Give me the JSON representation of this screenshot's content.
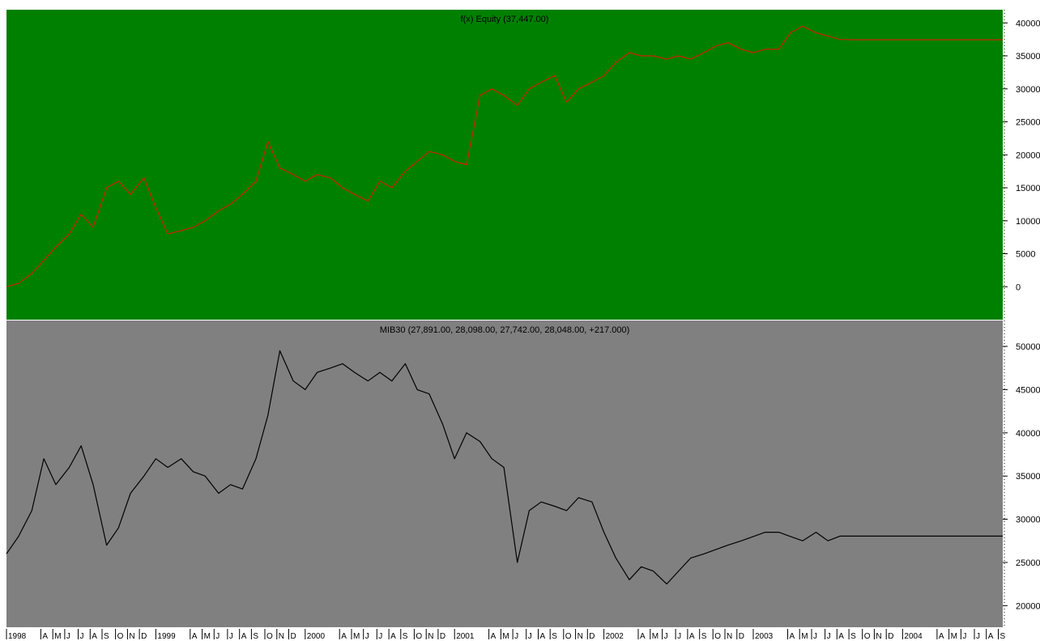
{
  "colors": {
    "page_background": "#ffffff",
    "equity_panel_background": "#008000",
    "equity_line": "#cc2200",
    "price_panel_background": "#808080",
    "price_line": "#000000",
    "axis_text": "#000000"
  },
  "chart_data": [
    {
      "type": "line",
      "panel": "top",
      "title": "f(x) Equity (37,447.00)",
      "xlabel": "",
      "ylabel": "",
      "grid": false,
      "y_axis_side": "right",
      "ylim": [
        -5000,
        42000
      ],
      "y_ticks": [
        0,
        5000,
        10000,
        15000,
        20000,
        25000,
        30000,
        35000,
        40000
      ],
      "y_tick_labels": [
        "0",
        "5000",
        "10000",
        "15000",
        "20000",
        "25000",
        "30000",
        "35000",
        "40000"
      ],
      "series": [
        {
          "x": [
            1998.0,
            1998.08,
            1998.17,
            1998.25,
            1998.33,
            1998.42,
            1998.5,
            1998.58,
            1998.67,
            1998.75,
            1998.83,
            1998.92,
            1999.0,
            1999.08,
            1999.17,
            1999.25,
            1999.33,
            1999.42,
            1999.5,
            1999.58,
            1999.67,
            1999.75,
            1999.83,
            1999.92,
            2000.0,
            2000.08,
            2000.17,
            2000.25,
            2000.33,
            2000.42,
            2000.5,
            2000.58,
            2000.67,
            2000.75,
            2000.83,
            2000.92,
            2001.0,
            2001.08,
            2001.17,
            2001.25,
            2001.33,
            2001.42,
            2001.5,
            2001.58,
            2001.67,
            2001.75,
            2001.83,
            2001.92,
            2002.0,
            2002.08,
            2002.17,
            2002.25,
            2002.33,
            2002.42,
            2002.5,
            2002.58,
            2002.67,
            2002.75,
            2002.83,
            2002.92,
            2003.0,
            2003.08,
            2003.17,
            2003.25,
            2003.33,
            2003.42,
            2003.5,
            2003.58,
            2003.67,
            2003.75,
            2003.83,
            2003.92,
            2004.0,
            2004.08,
            2004.17,
            2004.25,
            2004.33,
            2004.42,
            2004.5,
            2004.58,
            2004.67
          ],
          "values": [
            0,
            500,
            2000,
            4000,
            6000,
            8000,
            11000,
            9000,
            15000,
            16000,
            14000,
            16500,
            12000,
            8000,
            8500,
            9000,
            10000,
            11500,
            12500,
            14000,
            16000,
            22000,
            18000,
            17000,
            16000,
            17000,
            16500,
            15000,
            14000,
            13000,
            16000,
            15000,
            17500,
            19000,
            20500,
            20000,
            19000,
            18500,
            29000,
            30000,
            29000,
            27500,
            30000,
            31000,
            32000,
            28000,
            30000,
            31000,
            32000,
            34000,
            35500,
            35000,
            35000,
            34500,
            35000,
            34500,
            35500,
            36500,
            37000,
            36000,
            35500,
            36000,
            36000,
            38500,
            39500,
            38500,
            38000,
            37500,
            37447,
            37447,
            37447,
            37447,
            37447,
            37447,
            37447,
            37447,
            37447,
            37447,
            37447,
            37447,
            37447
          ]
        }
      ]
    },
    {
      "type": "line",
      "panel": "bottom",
      "title": "MIB30 (27,891.00, 28,098.00, 27,742.00, 28,048.00, +217.000)",
      "xlabel": "",
      "ylabel": "",
      "grid": false,
      "y_axis_side": "right",
      "ylim": [
        17500,
        53000
      ],
      "y_ticks": [
        20000,
        25000,
        30000,
        35000,
        40000,
        45000,
        50000
      ],
      "y_tick_labels": [
        "20000",
        "25000",
        "30000",
        "35000",
        "40000",
        "45000",
        "50000"
      ],
      "series": [
        {
          "x": [
            1998.0,
            1998.08,
            1998.17,
            1998.25,
            1998.33,
            1998.42,
            1998.5,
            1998.58,
            1998.67,
            1998.75,
            1998.83,
            1998.92,
            1999.0,
            1999.08,
            1999.17,
            1999.25,
            1999.33,
            1999.42,
            1999.5,
            1999.58,
            1999.67,
            1999.75,
            1999.83,
            1999.92,
            2000.0,
            2000.08,
            2000.17,
            2000.25,
            2000.33,
            2000.42,
            2000.5,
            2000.58,
            2000.67,
            2000.75,
            2000.83,
            2000.92,
            2001.0,
            2001.08,
            2001.17,
            2001.25,
            2001.33,
            2001.42,
            2001.5,
            2001.58,
            2001.67,
            2001.75,
            2001.83,
            2001.92,
            2002.0,
            2002.08,
            2002.17,
            2002.25,
            2002.33,
            2002.42,
            2002.5,
            2002.58,
            2002.67,
            2002.75,
            2002.83,
            2002.92,
            2003.0,
            2003.08,
            2003.17,
            2003.25,
            2003.33,
            2003.42,
            2003.5,
            2003.58,
            2003.67,
            2003.75,
            2003.83,
            2003.92,
            2004.0,
            2004.08,
            2004.17,
            2004.25,
            2004.33,
            2004.42,
            2004.5,
            2004.58,
            2004.67
          ],
          "values": [
            26000,
            28000,
            31000,
            37000,
            34000,
            36000,
            38500,
            34000,
            27000,
            29000,
            33000,
            35000,
            37000,
            36000,
            37000,
            35500,
            35000,
            33000,
            34000,
            33500,
            37000,
            42000,
            49500,
            46000,
            45000,
            47000,
            47500,
            48000,
            47000,
            46000,
            47000,
            46000,
            48000,
            45000,
            44500,
            41000,
            37000,
            40000,
            39000,
            37000,
            36000,
            25000,
            31000,
            32000,
            31500,
            31000,
            32500,
            32000,
            28500,
            25500,
            23000,
            24500,
            24000,
            22500,
            24000,
            25500,
            26000,
            26500,
            27000,
            27500,
            28000,
            28500,
            28500,
            28000,
            27500,
            28500,
            27500,
            28048,
            28048,
            28048,
            28048,
            28048,
            28048,
            28048,
            28048,
            28048,
            28048,
            28048,
            28048,
            28048,
            28048
          ]
        }
      ]
    }
  ],
  "x_axis": {
    "tick_labels": [
      "1998",
      "A",
      "M",
      "J",
      "J",
      "A",
      "S",
      "O",
      "N",
      "D",
      "1999",
      "A",
      "M",
      "J",
      "J",
      "A",
      "S",
      "O",
      "N",
      "D",
      "2000",
      "A",
      "M",
      "J",
      "J",
      "A",
      "S",
      "O",
      "N",
      "D",
      "2001",
      "A",
      "M",
      "J",
      "J",
      "A",
      "S",
      "O",
      "N",
      "D",
      "2002",
      "A",
      "M",
      "J",
      "J",
      "A",
      "S",
      "O",
      "N",
      "D",
      "2003",
      "A",
      "M",
      "J",
      "J",
      "A",
      "S",
      "O",
      "N",
      "D",
      "2004",
      "A",
      "M",
      "J",
      "J",
      "A",
      "S"
    ],
    "tick_x": [
      1998.0,
      1998.23,
      1998.31,
      1998.39,
      1998.48,
      1998.56,
      1998.64,
      1998.73,
      1998.81,
      1998.89,
      1999.0,
      1999.23,
      1999.31,
      1999.39,
      1999.48,
      1999.56,
      1999.64,
      1999.73,
      1999.81,
      1999.89,
      2000.0,
      2000.23,
      2000.31,
      2000.39,
      2000.48,
      2000.56,
      2000.64,
      2000.73,
      2000.81,
      2000.89,
      2001.0,
      2001.23,
      2001.31,
      2001.39,
      2001.48,
      2001.56,
      2001.64,
      2001.73,
      2001.81,
      2001.89,
      2002.0,
      2002.23,
      2002.31,
      2002.39,
      2002.48,
      2002.56,
      2002.64,
      2002.73,
      2002.81,
      2002.89,
      2003.0,
      2003.23,
      2003.31,
      2003.39,
      2003.48,
      2003.56,
      2003.64,
      2003.73,
      2003.81,
      2003.89,
      2004.0,
      2004.23,
      2004.31,
      2004.39,
      2004.48,
      2004.56,
      2004.64
    ],
    "xlim": [
      1998.0,
      2004.67
    ]
  }
}
